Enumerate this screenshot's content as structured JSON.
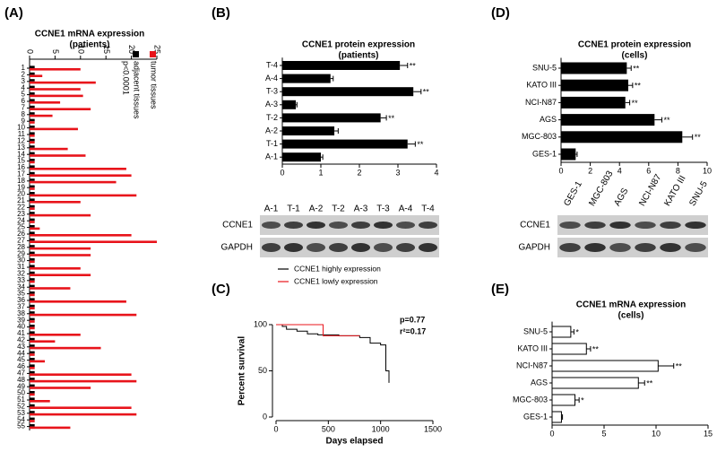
{
  "chart_data": [
    {
      "type": "bar",
      "panel_label": "(A)",
      "title": "CCNE1 mRNA expression",
      "subtitle": "(patients)",
      "xaxis_position": "top",
      "annotation": "p<0.0001",
      "categories": [
        "1",
        "2",
        "3",
        "4",
        "5",
        "6",
        "7",
        "8",
        "9",
        "10",
        "11",
        "12",
        "13",
        "14",
        "15",
        "16",
        "17",
        "18",
        "19",
        "20",
        "21",
        "22",
        "23",
        "24",
        "25",
        "26",
        "27",
        "28",
        "29",
        "30",
        "31",
        "32",
        "33",
        "34",
        "35",
        "36",
        "37",
        "38",
        "39",
        "40",
        "41",
        "42",
        "43",
        "44",
        "45",
        "46",
        "47",
        "48",
        "49",
        "50",
        "51",
        "52",
        "53",
        "54",
        "55"
      ],
      "series": [
        {
          "name": "adjacent tissues",
          "color": "#000000",
          "values": [
            1,
            1,
            1,
            1,
            1,
            1,
            1,
            1,
            1,
            1,
            1,
            1,
            1,
            1,
            1,
            1,
            1,
            1,
            1,
            1,
            1,
            1,
            1,
            1,
            1,
            1,
            1,
            1,
            1,
            1,
            1,
            1,
            1,
            1,
            1,
            1,
            1,
            1,
            1,
            1,
            1,
            1,
            1,
            1,
            1,
            1,
            1,
            1,
            1,
            1,
            1,
            1,
            1,
            1,
            1
          ]
        },
        {
          "name": "tumor tissues",
          "color": "#e8141b",
          "values": [
            10,
            2.5,
            13,
            10,
            10.5,
            6,
            12,
            4.5,
            1,
            9.5,
            1,
            1,
            7.5,
            11,
            1,
            19,
            20,
            17,
            1,
            21,
            10,
            1,
            12,
            1,
            2,
            20,
            25,
            12,
            12,
            1,
            10,
            12,
            1,
            8,
            1,
            19,
            1,
            21,
            1,
            1,
            10,
            5,
            14,
            1,
            3,
            1,
            20,
            21,
            12,
            1,
            4,
            20,
            21,
            1,
            8
          ]
        }
      ],
      "xlim": [
        0,
        25
      ],
      "xticks": [
        0,
        5,
        10,
        15,
        20,
        25
      ]
    },
    {
      "type": "bar",
      "panel_label": "(B)",
      "title": "CCNE1 protein expression",
      "subtitle": "(patients)",
      "categories": [
        "T-4",
        "A-4",
        "T-3",
        "A-3",
        "T-2",
        "A-2",
        "T-1",
        "A-1"
      ],
      "values": [
        3.05,
        1.25,
        3.4,
        0.35,
        2.55,
        1.35,
        3.25,
        1.0
      ],
      "errors": [
        0.2,
        0.07,
        0.2,
        0.03,
        0.15,
        0.1,
        0.2,
        0.05
      ],
      "significance": [
        "**",
        null,
        "**",
        null,
        "**",
        null,
        "**",
        null
      ],
      "color": "#000000",
      "xlim": [
        0,
        4
      ],
      "xticks": [
        0,
        1,
        2,
        3,
        4
      ],
      "blot": {
        "lanes": [
          "A-1",
          "T-1",
          "A-2",
          "T-2",
          "A-3",
          "T-3",
          "A-4",
          "T-4"
        ],
        "rows": [
          "CCNE1",
          "GAPDH"
        ]
      }
    },
    {
      "type": "line",
      "panel_label": "(C)",
      "xlabel": "Days elapsed",
      "ylabel": "Percent survival",
      "annotations": [
        "p=0.77",
        "r²=0.17"
      ],
      "series": [
        {
          "name": "CCNE1 highly expression",
          "color": "#000000",
          "x": [
            0,
            60,
            100,
            200,
            300,
            400,
            600,
            800,
            900,
            1000,
            1050,
            1080
          ],
          "values": [
            100,
            98,
            95,
            93,
            90,
            89,
            88,
            86,
            80,
            78,
            50,
            37
          ]
        },
        {
          "name": "CCNE1 lowly expression",
          "color": "#e8141b",
          "x": [
            0,
            450,
            800
          ],
          "values": [
            100,
            88,
            88
          ]
        }
      ],
      "xlim": [
        0,
        1500
      ],
      "xticks": [
        0,
        500,
        1000,
        1500
      ],
      "ylim": [
        0,
        100
      ],
      "yticks": [
        0,
        50,
        100
      ]
    },
    {
      "type": "bar",
      "panel_label": "(D)",
      "title": "CCNE1 protein expression",
      "subtitle": "(cells)",
      "categories": [
        "SNU-5",
        "KATO III",
        "NCI-N87",
        "AGS",
        "MGC-803",
        "GES-1"
      ],
      "values": [
        4.5,
        4.6,
        4.4,
        6.4,
        8.3,
        1.0
      ],
      "errors": [
        0.3,
        0.3,
        0.3,
        0.5,
        0.7,
        0.1
      ],
      "significance": [
        "**",
        "**",
        "**",
        "**",
        "**",
        null
      ],
      "color": "#000000",
      "xlim": [
        0,
        10
      ],
      "xticks": [
        0,
        2,
        4,
        6,
        8,
        10
      ],
      "blot": {
        "lanes": [
          "GES-1",
          "MGC-803",
          "AGS",
          "NCI-N87",
          "KATO III",
          "SNU-5"
        ],
        "rows": [
          "CCNE1",
          "GAPDH"
        ]
      }
    },
    {
      "type": "bar",
      "panel_label": "(E)",
      "title": "CCNE1 mRNA expression",
      "subtitle": "(cells)",
      "categories": [
        "SNU-5",
        "KATO III",
        "NCI-N87",
        "AGS",
        "MGC-803",
        "GES-1"
      ],
      "values": [
        1.8,
        3.3,
        10.2,
        8.3,
        2.2,
        0.9
      ],
      "errors": [
        0.3,
        0.4,
        1.5,
        0.6,
        0.4,
        0.1
      ],
      "significance": [
        "*",
        "**",
        "**",
        "**",
        "*",
        null
      ],
      "color": "#ffffff",
      "edgecolor": "#000000",
      "xlim": [
        0,
        15
      ],
      "xticks": [
        0,
        5,
        10,
        15
      ]
    }
  ]
}
